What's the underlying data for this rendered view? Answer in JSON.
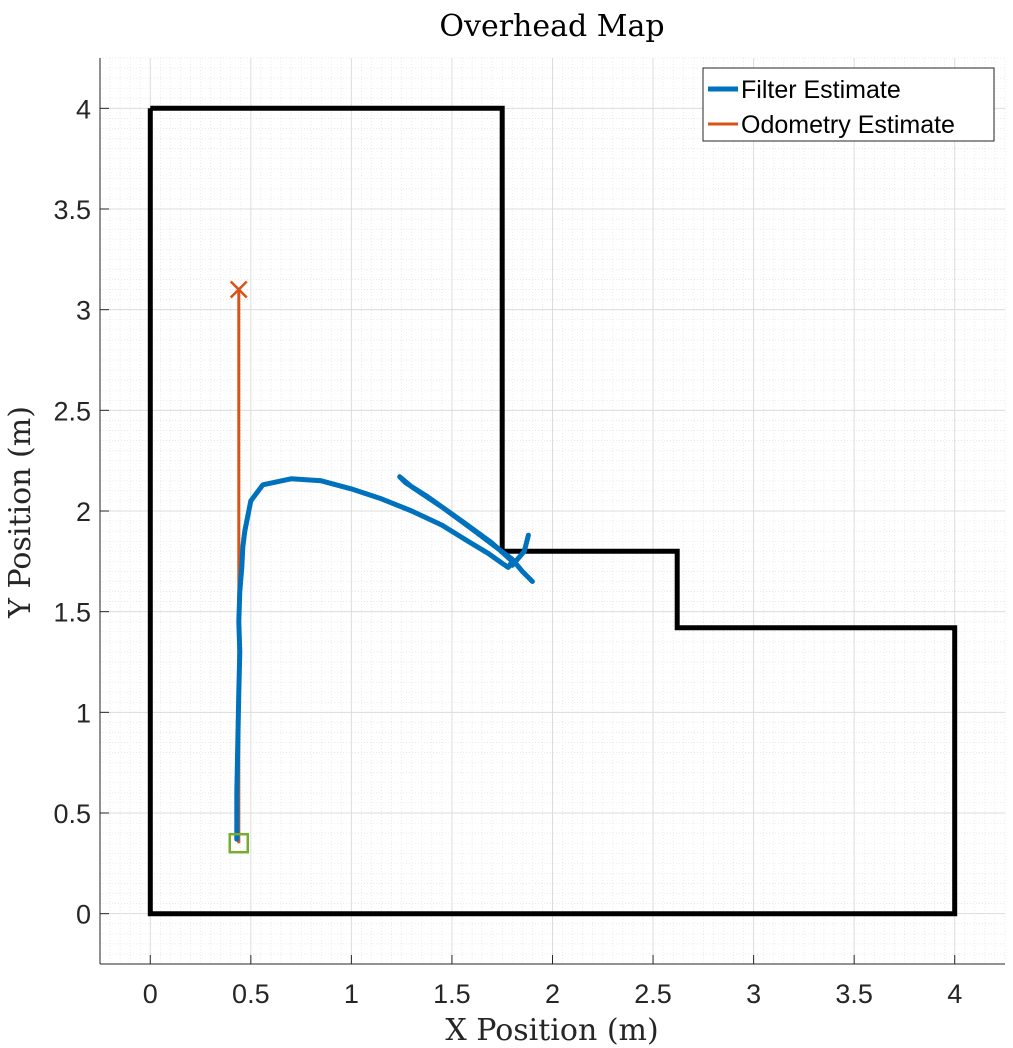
{
  "chart_data": {
    "type": "line",
    "title": "Overhead Map",
    "xlabel": "X Position (m)",
    "ylabel": "Y Position (m)",
    "xlim": [
      -0.25,
      4.25
    ],
    "ylim": [
      -0.25,
      4.25
    ],
    "xticks": [
      0,
      0.5,
      1,
      1.5,
      2,
      2.5,
      3,
      3.5,
      4
    ],
    "yticks": [
      0,
      0.5,
      1,
      1.5,
      2,
      2.5,
      3,
      3.5,
      4
    ],
    "xtick_labels": [
      "0",
      "0.5",
      "1",
      "1.5",
      "2",
      "2.5",
      "3",
      "3.5",
      "4"
    ],
    "ytick_labels": [
      "0",
      "0.5",
      "1",
      "1.5",
      "2",
      "2.5",
      "3",
      "3.5",
      "4"
    ],
    "grid": "on (major and minor)",
    "legend_position": "top-right",
    "walls": {
      "color": "#000000",
      "x": [
        0,
        1.75,
        1.75,
        2.62,
        2.62,
        4,
        4,
        0,
        0
      ],
      "y": [
        4,
        4,
        1.8,
        1.8,
        1.42,
        1.42,
        0,
        0,
        4
      ]
    },
    "series": [
      {
        "name": "Filter Estimate",
        "color": "#0072BD",
        "x": [
          0.43,
          0.43,
          0.435,
          0.44,
          0.445,
          0.44,
          0.445,
          0.455,
          0.46,
          0.47,
          0.5,
          0.56,
          0.7,
          0.85,
          1.0,
          1.15,
          1.3,
          1.45,
          1.58,
          1.68,
          1.75,
          1.78,
          1.8,
          1.7,
          1.55,
          1.38,
          1.27,
          1.24,
          1.3,
          1.45,
          1.6,
          1.72,
          1.8,
          1.85,
          1.9
        ],
        "y": [
          0.37,
          0.6,
          0.85,
          1.1,
          1.3,
          1.45,
          1.6,
          1.72,
          1.82,
          1.9,
          2.05,
          2.13,
          2.16,
          2.15,
          2.11,
          2.06,
          2.0,
          1.93,
          1.85,
          1.79,
          1.74,
          1.72,
          1.75,
          1.84,
          1.95,
          2.07,
          2.14,
          2.17,
          2.12,
          2.02,
          1.91,
          1.82,
          1.76,
          1.7,
          1.65
        ]
      },
      {
        "name": "Odometry Estimate",
        "color": "#D95319",
        "x": [
          0.44,
          0.44
        ],
        "y": [
          0.35,
          3.1
        ]
      }
    ],
    "extra_segments": [
      {
        "color": "#0072BD",
        "x": [
          1.8,
          1.86,
          1.88
        ],
        "y": [
          1.73,
          1.8,
          1.88
        ]
      }
    ],
    "markers": [
      {
        "shape": "square",
        "color": "#77AC30",
        "x": 0.44,
        "y": 0.35
      },
      {
        "shape": "x",
        "color": "#D95319",
        "x": 0.44,
        "y": 3.1
      }
    ]
  }
}
